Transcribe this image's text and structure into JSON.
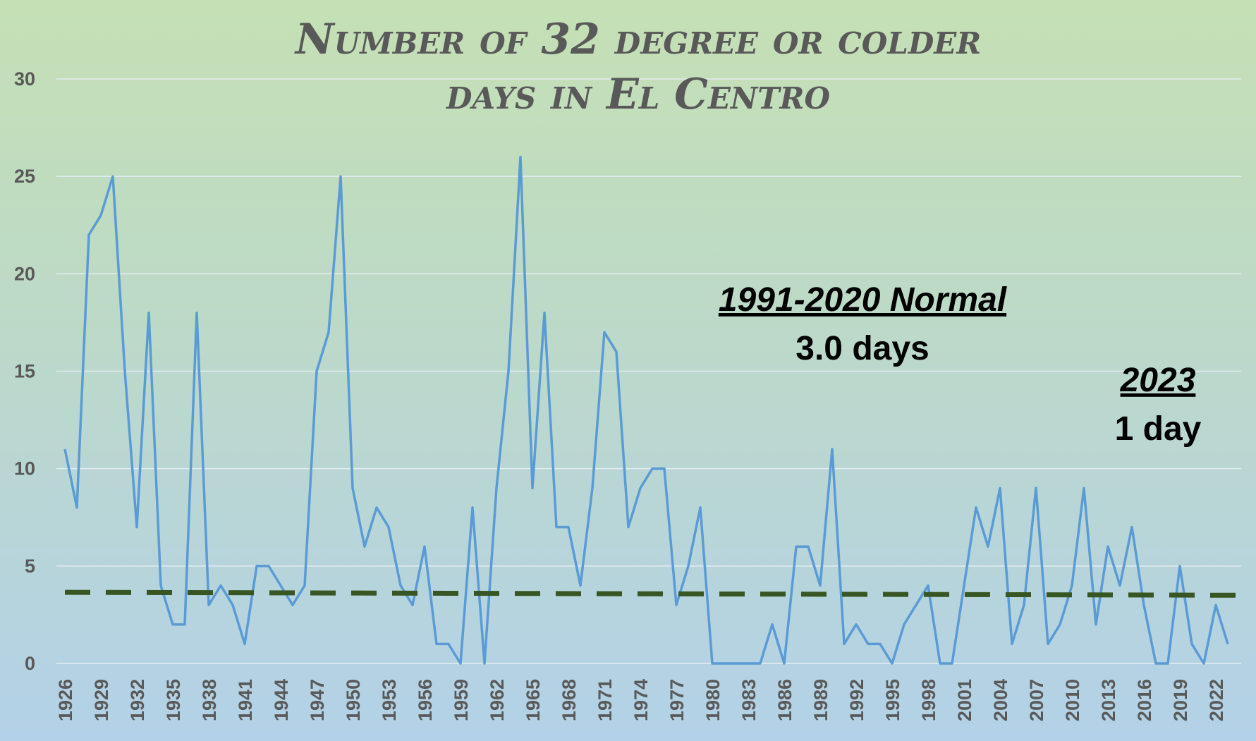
{
  "chart_data": {
    "type": "line",
    "title_line1": "Number of 32 degree or colder",
    "title_line2": "days in El Centro",
    "ylim": [
      0,
      30
    ],
    "yticks": [
      "0",
      "5",
      "10",
      "15",
      "20",
      "25",
      "30"
    ],
    "x_tick_labels": [
      "1926",
      "1929",
      "1932",
      "1935",
      "1938",
      "1941",
      "1944",
      "1947",
      "1950",
      "1953",
      "1956",
      "1959",
      "1962",
      "1965",
      "1968",
      "1971",
      "1974",
      "1977",
      "1980",
      "1983",
      "1986",
      "1989",
      "1992",
      "1995",
      "1998",
      "2001",
      "2004",
      "2007",
      "2010",
      "2013",
      "2016",
      "2019",
      "2022"
    ],
    "grid": true,
    "series": [
      {
        "type": "line",
        "color": "#5b9bd5",
        "x": [
          1926,
          1927,
          1928,
          1929,
          1930,
          1931,
          1932,
          1933,
          1934,
          1935,
          1936,
          1937,
          1938,
          1939,
          1940,
          1941,
          1942,
          1943,
          1944,
          1945,
          1946,
          1947,
          1948,
          1949,
          1950,
          1951,
          1952,
          1953,
          1954,
          1955,
          1956,
          1957,
          1958,
          1959,
          1960,
          1961,
          1962,
          1963,
          1964,
          1965,
          1966,
          1967,
          1968,
          1969,
          1970,
          1971,
          1972,
          1973,
          1974,
          1975,
          1976,
          1977,
          1978,
          1979,
          1980,
          1981,
          1982,
          1983,
          1984,
          1985,
          1986,
          1987,
          1988,
          1989,
          1990,
          1991,
          1992,
          1993,
          1994,
          1995,
          1996,
          1997,
          1998,
          1999,
          2000,
          2001,
          2002,
          2003,
          2004,
          2005,
          2006,
          2007,
          2008,
          2009,
          2010,
          2011,
          2012,
          2013,
          2014,
          2015,
          2016,
          2017,
          2018,
          2019,
          2020,
          2021,
          2022,
          2023
        ],
        "values": [
          11,
          8,
          22,
          23,
          25,
          15,
          7,
          18,
          4,
          2,
          2,
          18,
          3,
          4,
          3,
          1,
          5,
          5,
          4,
          3,
          4,
          15,
          17,
          25,
          9,
          6,
          8,
          7,
          4,
          3,
          6,
          1,
          1,
          0,
          8,
          0,
          9,
          15,
          26,
          9,
          18,
          7,
          7,
          4,
          9,
          17,
          16,
          7,
          9,
          10,
          10,
          3,
          5,
          8,
          0,
          0,
          0,
          0,
          0,
          2,
          0,
          6,
          6,
          4,
          11,
          1,
          2,
          1,
          1,
          0,
          2,
          3,
          4,
          0,
          0,
          4,
          8,
          6,
          9,
          1,
          3,
          9,
          1,
          2,
          4,
          9,
          2,
          6,
          4,
          7,
          3,
          0,
          0,
          5,
          1,
          0,
          3,
          1
        ]
      },
      {
        "type": "line",
        "style": "dashed",
        "color": "#375623",
        "x": [
          1926,
          2024
        ],
        "values": [
          3.65,
          3.5
        ]
      }
    ],
    "annotations": [
      {
        "heading": "1991-2020 Normal",
        "value": "3.0 days"
      },
      {
        "heading": "2023",
        "value": "1 day"
      }
    ]
  }
}
